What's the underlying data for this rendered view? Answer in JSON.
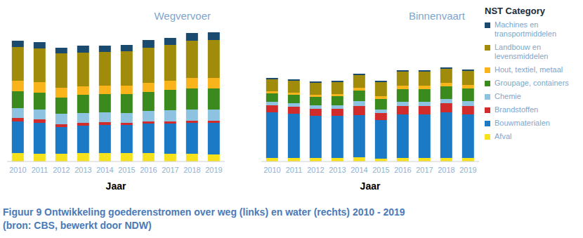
{
  "caption": [
    "Figuur 9 Ontwikkeling goederenstromen over weg (links) en water (rechts) 2010 - 2019",
    "(bron: CBS, bewerkt door NDW)"
  ],
  "legend_title": "NST Category",
  "chart_data": [
    {
      "type": "bar",
      "title": "Wegvervoer",
      "stacked": true,
      "tick_labels": "x",
      "grid": false,
      "legend": "right",
      "x_label": "Jaar",
      "categories": [
        "2010",
        "2011",
        "2012",
        "2013",
        "2014",
        "2015",
        "2016",
        "2017",
        "2018",
        "2019"
      ],
      "ylim": [
        0,
        190
      ],
      "series": [
        {
          "name": "Afval",
          "color": "#f5e21c",
          "values": [
            12,
            11,
            11,
            12,
            12,
            12,
            12,
            11,
            11,
            10
          ]
        },
        {
          "name": "Bouwmaterialen",
          "color": "#1a7ac6",
          "values": [
            45,
            44,
            38,
            39,
            40,
            40,
            42,
            43,
            44,
            45
          ]
        },
        {
          "name": "Brandstoffen",
          "color": "#d22b2b",
          "values": [
            5,
            5,
            4,
            4,
            4,
            3,
            3,
            3,
            3,
            3
          ]
        },
        {
          "name": "Chemie",
          "color": "#8dc3e0",
          "values": [
            14,
            14,
            15,
            14,
            14,
            14,
            15,
            16,
            16,
            16
          ]
        },
        {
          "name": "Groupage, containers",
          "color": "#3a8a1e",
          "values": [
            24,
            24,
            23,
            26,
            26,
            27,
            27,
            29,
            30,
            30
          ]
        },
        {
          "name": "Hout, textiel, metaal",
          "color": "#f9b41b",
          "values": [
            15,
            15,
            14,
            12,
            12,
            12,
            13,
            13,
            15,
            15
          ]
        },
        {
          "name": "Landbouw en levensmiddelen",
          "color": "#a08c0a",
          "values": [
            48,
            48,
            49,
            48,
            48,
            49,
            50,
            51,
            53,
            54
          ]
        },
        {
          "name": "Machines en transportmiddelen",
          "color": "#1a4a6e",
          "values": [
            9,
            9,
            8,
            10,
            9,
            9,
            11,
            10,
            11,
            11
          ]
        }
      ]
    },
    {
      "type": "bar",
      "title": "Binnenvaart",
      "stacked": true,
      "tick_labels": "x",
      "grid": false,
      "x_label": "Jaar",
      "categories": [
        "2010",
        "2011",
        "2012",
        "2013",
        "2014",
        "2015",
        "2016",
        "2017",
        "2018",
        "2019"
      ],
      "ylim": [
        0,
        190
      ],
      "series": [
        {
          "name": "Afval",
          "color": "#f5e21c",
          "values": [
            5,
            5,
            5,
            5,
            6,
            4,
            5,
            5,
            5,
            5
          ]
        },
        {
          "name": "Bouwmaterialen",
          "color": "#1a7ac6",
          "values": [
            65,
            63,
            60,
            60,
            60,
            55,
            62,
            62,
            65,
            62
          ]
        },
        {
          "name": "Brandstoffen",
          "color": "#d22b2b",
          "values": [
            10,
            10,
            10,
            10,
            13,
            10,
            12,
            12,
            13,
            12
          ]
        },
        {
          "name": "Chemie",
          "color": "#8dc3e0",
          "values": [
            5,
            5,
            5,
            5,
            7,
            5,
            6,
            6,
            6,
            7
          ]
        },
        {
          "name": "Groupage, containers",
          "color": "#3a8a1e",
          "values": [
            12,
            12,
            12,
            13,
            15,
            15,
            18,
            18,
            18,
            18
          ]
        },
        {
          "name": "Hout, textiel, metaal",
          "color": "#f9b41b",
          "values": [
            3,
            3,
            3,
            3,
            4,
            4,
            5,
            5,
            5,
            5
          ]
        },
        {
          "name": "Landbouw en levensmiddelen",
          "color": "#a08c0a",
          "values": [
            17,
            17,
            17,
            17,
            18,
            20,
            20,
            20,
            20,
            20
          ]
        },
        {
          "name": "Machines en transportmiddelen",
          "color": "#1a4a6e",
          "values": [
            2,
            2,
            2,
            2,
            2,
            2,
            2,
            2,
            2,
            2
          ]
        }
      ]
    }
  ]
}
